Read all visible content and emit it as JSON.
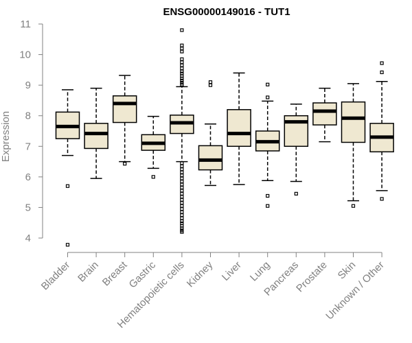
{
  "chart_data": {
    "type": "boxplot",
    "title": "ENSG00000149016 - TUT1",
    "xlabel": "",
    "ylabel": "Expression",
    "ylim": [
      3.7,
      11.1
    ],
    "yticks": [
      4,
      5,
      6,
      7,
      8,
      9,
      10,
      11
    ],
    "box_color": "#efe8d1",
    "categories": [
      "Bladder",
      "Brain",
      "Breast",
      "Gastric",
      "Hematopoietic cells",
      "Kidney",
      "Liver",
      "Lung",
      "Pancreas",
      "Prostate",
      "Skin",
      "Unknown / Other"
    ],
    "boxes": [
      {
        "whislo": 6.7,
        "q1": 7.25,
        "med": 7.65,
        "q3": 8.12,
        "whishi": 8.85,
        "outliers": [
          5.7,
          3.78
        ]
      },
      {
        "whislo": 5.95,
        "q1": 6.93,
        "med": 7.42,
        "q3": 7.75,
        "whishi": 8.9,
        "outliers": []
      },
      {
        "whislo": 6.5,
        "q1": 7.78,
        "med": 8.4,
        "q3": 8.65,
        "whishi": 9.32,
        "outliers": [
          6.43
        ]
      },
      {
        "whislo": 6.28,
        "q1": 6.87,
        "med": 7.1,
        "q3": 7.38,
        "whishi": 7.98,
        "outliers": [
          6.0
        ]
      },
      {
        "whislo": 6.5,
        "q1": 7.42,
        "med": 7.77,
        "q3": 8.02,
        "whishi": 8.95,
        "outliers": [
          10.8,
          10.3,
          10.2,
          10.1,
          9.85,
          9.75,
          9.65,
          9.55,
          9.45,
          9.38,
          9.3,
          9.22,
          9.15,
          9.08,
          9.02,
          6.45,
          6.35,
          6.25,
          6.15,
          6.05,
          5.95,
          5.85,
          5.75,
          5.65,
          5.55,
          5.45,
          5.35,
          5.25,
          5.15,
          5.05,
          4.95,
          4.85,
          4.75,
          4.65,
          4.55,
          4.48,
          4.4,
          4.32,
          4.25,
          4.2
        ]
      },
      {
        "whislo": 5.72,
        "q1": 6.23,
        "med": 6.55,
        "q3": 7.02,
        "whishi": 7.73,
        "outliers": [
          9.1,
          9.0
        ]
      },
      {
        "whislo": 5.75,
        "q1": 7.0,
        "med": 7.42,
        "q3": 8.2,
        "whishi": 9.4,
        "outliers": []
      },
      {
        "whislo": 5.88,
        "q1": 6.85,
        "med": 7.15,
        "q3": 7.5,
        "whishi": 8.48,
        "outliers": [
          9.02,
          8.6,
          5.38,
          5.05
        ]
      },
      {
        "whislo": 5.85,
        "q1": 7.0,
        "med": 7.8,
        "q3": 8.0,
        "whishi": 8.38,
        "outliers": [
          5.45
        ]
      },
      {
        "whislo": 7.15,
        "q1": 7.7,
        "med": 8.15,
        "q3": 8.42,
        "whishi": 8.9,
        "outliers": []
      },
      {
        "whislo": 5.22,
        "q1": 7.13,
        "med": 7.92,
        "q3": 8.45,
        "whishi": 9.05,
        "outliers": [
          5.05
        ]
      },
      {
        "whislo": 5.55,
        "q1": 6.82,
        "med": 7.3,
        "q3": 7.75,
        "whishi": 9.12,
        "outliers": [
          9.72,
          9.42,
          5.28
        ]
      }
    ]
  }
}
